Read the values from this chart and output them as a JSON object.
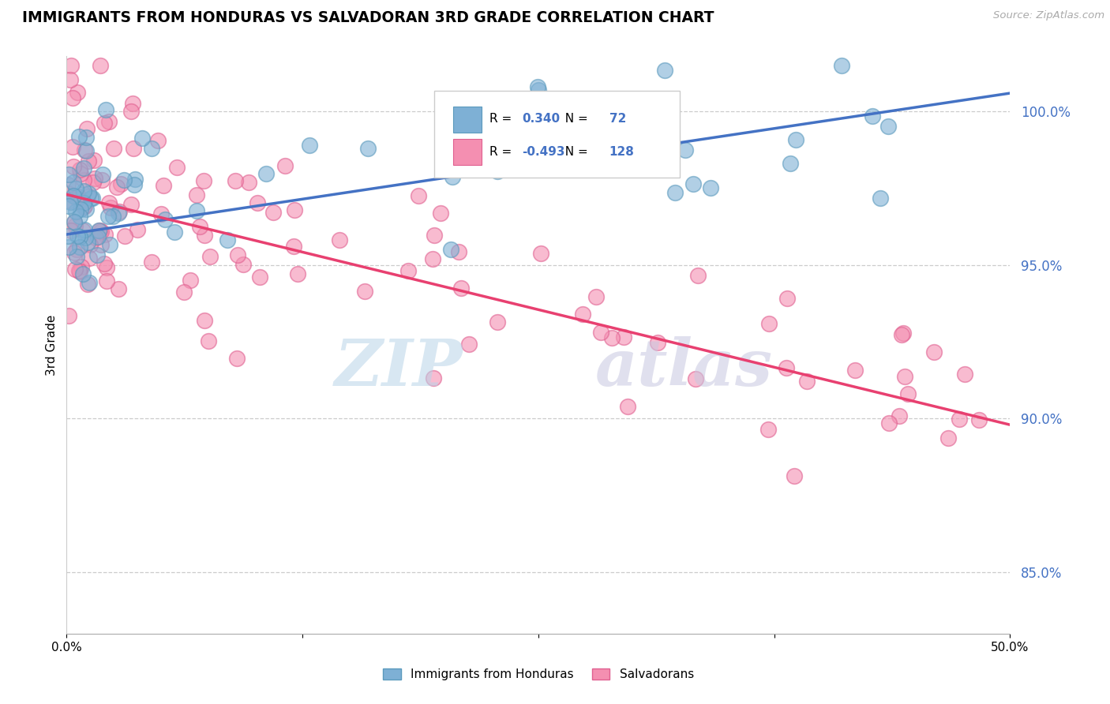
{
  "title": "IMMIGRANTS FROM HONDURAS VS SALVADORAN 3RD GRADE CORRELATION CHART",
  "ylabel": "3rd Grade",
  "source": "Source: ZipAtlas.com",
  "legend_blue_r": "0.340",
  "legend_blue_n": "72",
  "legend_pink_r": "-0.493",
  "legend_pink_n": "128",
  "xlim": [
    0.0,
    50.0
  ],
  "ylim": [
    83.0,
    101.8
  ],
  "yticks": [
    85.0,
    90.0,
    95.0,
    100.0
  ],
  "ytick_labels": [
    "85.0%",
    "90.0%",
    "95.0%",
    "100.0%"
  ],
  "blue_color": "#7EB0D5",
  "pink_color": "#F48FB1",
  "blue_edge_color": "#5B9ABD",
  "pink_edge_color": "#E06090",
  "blue_line_color": "#4472C4",
  "pink_line_color": "#E84070",
  "background_color": "#FFFFFF",
  "blue_trend_x": [
    0.0,
    50.0
  ],
  "blue_trend_y": [
    96.0,
    100.6
  ],
  "pink_trend_x": [
    0.0,
    50.0
  ],
  "pink_trend_y": [
    97.3,
    89.8
  ]
}
